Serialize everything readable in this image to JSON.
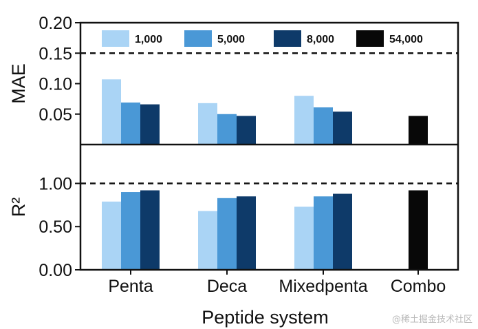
{
  "chart_data": {
    "type": "bar",
    "xlabel": "Peptide system",
    "categories": [
      "Penta",
      "Deca",
      "Mixedpenta",
      "Combo"
    ],
    "legend": [
      "1,000",
      "5,000",
      "8,000",
      "54,000"
    ],
    "colors": {
      "1,000": "#aad4f5",
      "5,000": "#4a98d6",
      "8,000": "#0e3a69",
      "54,000": "#080808"
    },
    "panels": [
      {
        "ylabel": "MAE",
        "ylim": [
          0,
          0.2
        ],
        "yticks": [
          "0.05",
          "0.10",
          "0.15",
          "0.20"
        ],
        "yticks_values": [
          0.05,
          0.1,
          0.15,
          0.2
        ],
        "reference_line": 0.15,
        "series": [
          {
            "name": "1,000",
            "values": [
              0.107,
              0.068,
              0.08,
              null
            ]
          },
          {
            "name": "5,000",
            "values": [
              0.069,
              0.05,
              0.061,
              null
            ]
          },
          {
            "name": "8,000",
            "values": [
              0.066,
              0.047,
              0.054,
              null
            ]
          },
          {
            "name": "54,000",
            "values": [
              null,
              null,
              null,
              0.047
            ]
          }
        ]
      },
      {
        "ylabel": "R²",
        "ylim": [
          0,
          1.45
        ],
        "yticks": [
          "0.00",
          "0.50",
          "1.00"
        ],
        "yticks_values": [
          0.0,
          0.5,
          1.0
        ],
        "reference_line": 1.0,
        "series": [
          {
            "name": "1,000",
            "values": [
              0.79,
              0.68,
              0.73,
              null
            ]
          },
          {
            "name": "5,000",
            "values": [
              0.9,
              0.83,
              0.85,
              null
            ]
          },
          {
            "name": "8,000",
            "values": [
              0.92,
              0.85,
              0.88,
              null
            ]
          },
          {
            "name": "54,000",
            "values": [
              null,
              null,
              null,
              0.92
            ]
          }
        ]
      }
    ]
  },
  "watermark": "@稀土掘金技术社区"
}
